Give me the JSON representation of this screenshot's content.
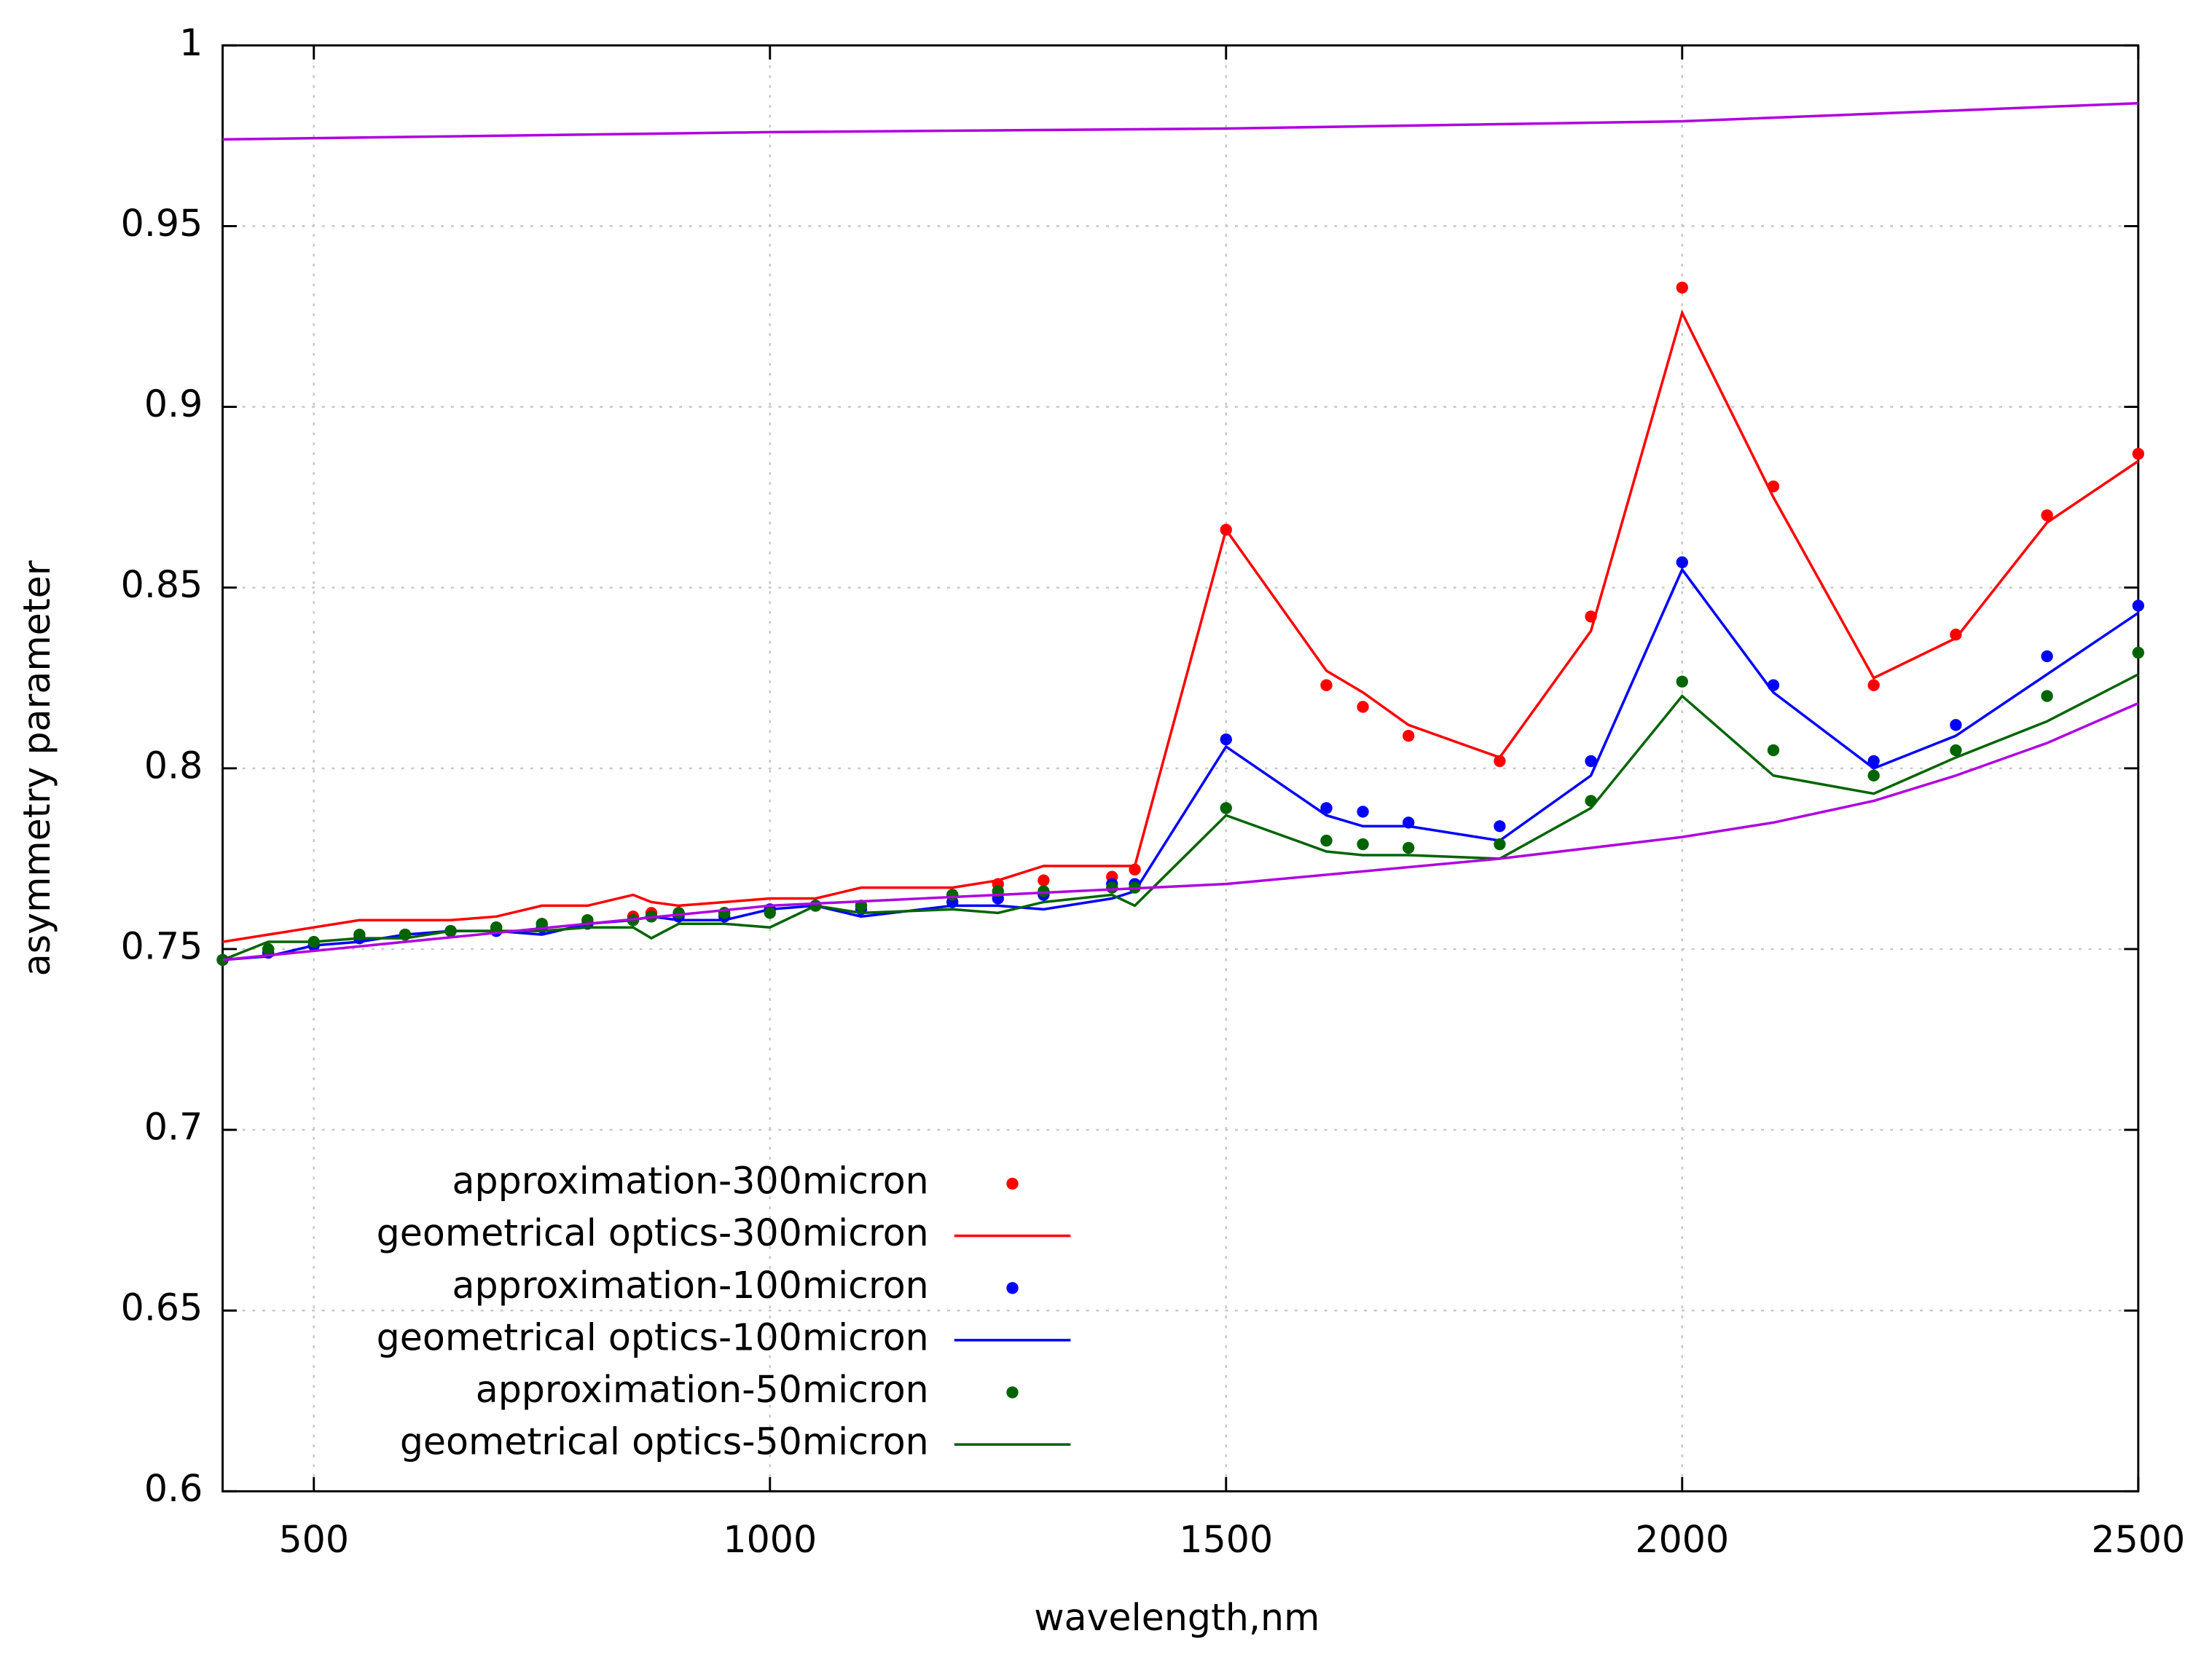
{
  "chart_data": {
    "type": "line",
    "xlabel": "wavelength,nm",
    "ylabel": "asymmetry parameter",
    "xlim": [
      400,
      2500
    ],
    "ylim": [
      0.6,
      1
    ],
    "xticks": [
      500,
      1000,
      1500,
      2000,
      2500
    ],
    "yticks": [
      0.6,
      0.65,
      0.7,
      0.75,
      0.8,
      0.85,
      0.9,
      0.95,
      1
    ],
    "grid": true,
    "legend": "lower left",
    "series": [
      {
        "name": "approximation-300micron",
        "color": "#ff0000",
        "mode": "points",
        "x": [
          400,
          450,
          500,
          550,
          600,
          650,
          700,
          750,
          800,
          850,
          870,
          900,
          950,
          1000,
          1050,
          1100,
          1200,
          1250,
          1300,
          1375,
          1400,
          1500,
          1610,
          1650,
          1700,
          1800,
          1900,
          2000,
          2100,
          2210,
          2300,
          2400,
          2500
        ],
        "values": [
          0.747,
          0.749,
          0.751,
          0.753,
          0.754,
          0.755,
          0.756,
          0.757,
          0.758,
          0.759,
          0.76,
          0.76,
          0.76,
          0.761,
          0.762,
          0.762,
          0.765,
          0.768,
          0.769,
          0.77,
          0.772,
          0.866,
          0.823,
          0.817,
          0.809,
          0.802,
          0.842,
          0.933,
          0.878,
          0.823,
          0.837,
          0.87,
          0.887
        ]
      },
      {
        "name": "geometrical optics-300micron",
        "color": "#ff0000",
        "mode": "line",
        "x": [
          400,
          450,
          500,
          550,
          600,
          650,
          700,
          750,
          800,
          850,
          870,
          900,
          950,
          1000,
          1050,
          1100,
          1200,
          1250,
          1300,
          1375,
          1400,
          1500,
          1610,
          1650,
          1700,
          1800,
          1900,
          2000,
          2100,
          2210,
          2300,
          2400,
          2500
        ],
        "values": [
          0.752,
          0.754,
          0.756,
          0.758,
          0.758,
          0.758,
          0.759,
          0.762,
          0.762,
          0.765,
          0.763,
          0.762,
          0.763,
          0.764,
          0.764,
          0.767,
          0.767,
          0.769,
          0.773,
          0.773,
          0.773,
          0.866,
          0.827,
          0.821,
          0.812,
          0.803,
          0.838,
          0.926,
          0.875,
          0.825,
          0.836,
          0.868,
          0.885
        ]
      },
      {
        "name": "approximation-100micron",
        "color": "#0000ff",
        "mode": "points",
        "x": [
          400,
          450,
          500,
          550,
          600,
          650,
          700,
          750,
          800,
          850,
          870,
          900,
          950,
          1000,
          1050,
          1100,
          1200,
          1250,
          1300,
          1375,
          1400,
          1500,
          1610,
          1650,
          1700,
          1800,
          1900,
          2000,
          2100,
          2210,
          2300,
          2400,
          2500
        ],
        "values": [
          0.747,
          0.749,
          0.751,
          0.753,
          0.754,
          0.755,
          0.755,
          0.756,
          0.757,
          0.758,
          0.759,
          0.759,
          0.759,
          0.761,
          0.762,
          0.761,
          0.763,
          0.764,
          0.765,
          0.768,
          0.768,
          0.808,
          0.789,
          0.788,
          0.785,
          0.784,
          0.802,
          0.857,
          0.823,
          0.802,
          0.812,
          0.831,
          0.845
        ]
      },
      {
        "name": "geometrical optics-100micron",
        "color": "#0000ff",
        "mode": "line",
        "x": [
          400,
          450,
          500,
          550,
          600,
          650,
          700,
          750,
          800,
          850,
          870,
          900,
          950,
          1000,
          1050,
          1100,
          1200,
          1250,
          1300,
          1375,
          1400,
          1500,
          1610,
          1650,
          1700,
          1800,
          1900,
          2000,
          2100,
          2210,
          2300,
          2400,
          2500
        ],
        "values": [
          0.747,
          0.748,
          0.751,
          0.752,
          0.754,
          0.755,
          0.755,
          0.754,
          0.757,
          0.758,
          0.759,
          0.758,
          0.758,
          0.761,
          0.762,
          0.759,
          0.762,
          0.762,
          0.761,
          0.764,
          0.766,
          0.806,
          0.787,
          0.784,
          0.784,
          0.78,
          0.798,
          0.855,
          0.821,
          0.8,
          0.809,
          0.826,
          0.843
        ]
      },
      {
        "name": "approximation-50micron",
        "color": "#006400",
        "mode": "points",
        "x": [
          400,
          450,
          500,
          550,
          600,
          650,
          700,
          750,
          800,
          850,
          870,
          900,
          950,
          1000,
          1050,
          1100,
          1200,
          1250,
          1300,
          1375,
          1400,
          1500,
          1610,
          1650,
          1700,
          1800,
          1900,
          2000,
          2100,
          2210,
          2300,
          2400,
          2500
        ],
        "values": [
          0.747,
          0.75,
          0.752,
          0.754,
          0.754,
          0.755,
          0.756,
          0.757,
          0.758,
          0.758,
          0.759,
          0.76,
          0.76,
          0.76,
          0.762,
          0.762,
          0.765,
          0.766,
          0.766,
          0.767,
          0.767,
          0.789,
          0.78,
          0.779,
          0.778,
          0.779,
          0.791,
          0.824,
          0.805,
          0.798,
          0.805,
          0.82,
          0.832
        ]
      },
      {
        "name": "geometrical optics-50micron",
        "color": "#006400",
        "mode": "line",
        "x": [
          400,
          450,
          500,
          550,
          600,
          650,
          700,
          750,
          800,
          850,
          870,
          900,
          950,
          1000,
          1050,
          1100,
          1200,
          1250,
          1300,
          1375,
          1400,
          1500,
          1610,
          1650,
          1700,
          1800,
          1900,
          2000,
          2100,
          2210,
          2300,
          2400,
          2500
        ],
        "values": [
          0.747,
          0.752,
          0.752,
          0.753,
          0.753,
          0.755,
          0.755,
          0.755,
          0.756,
          0.756,
          0.753,
          0.757,
          0.757,
          0.756,
          0.762,
          0.76,
          0.761,
          0.76,
          0.763,
          0.765,
          0.762,
          0.787,
          0.777,
          0.776,
          0.776,
          0.775,
          0.789,
          0.82,
          0.798,
          0.793,
          0.803,
          0.813,
          0.826
        ]
      },
      {
        "color": "#b000e0",
        "mode": "line",
        "x": [
          400,
          1000,
          1500,
          2000,
          2500
        ],
        "values": [
          0.974,
          0.976,
          0.977,
          0.979,
          0.984
        ]
      },
      {
        "color": "#b000e0",
        "mode": "line",
        "x": [
          400,
          1000,
          1500,
          1800,
          2000,
          2100,
          2210,
          2300,
          2400,
          2500
        ],
        "values": [
          0.747,
          0.762,
          0.768,
          0.775,
          0.781,
          0.785,
          0.791,
          0.798,
          0.807,
          0.818
        ]
      }
    ]
  }
}
